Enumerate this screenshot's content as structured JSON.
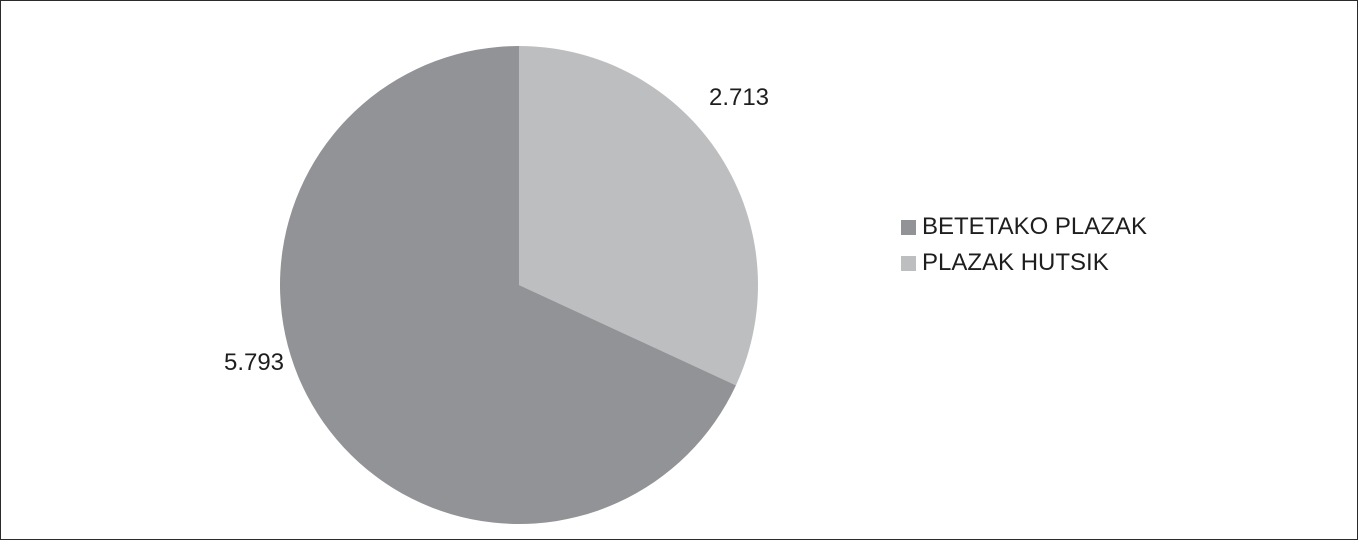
{
  "chart_data": {
    "type": "pie",
    "categories": [
      "BETETAKO PLAZAK",
      "PLAZAK HUTSIK"
    ],
    "values": [
      5793,
      2713
    ],
    "data_labels": [
      "5.793",
      "2.713"
    ],
    "colors": [
      "#929396",
      "#bdbec0"
    ],
    "start_angle_deg": 0,
    "direction": "clockwise",
    "legend_position": "right"
  }
}
